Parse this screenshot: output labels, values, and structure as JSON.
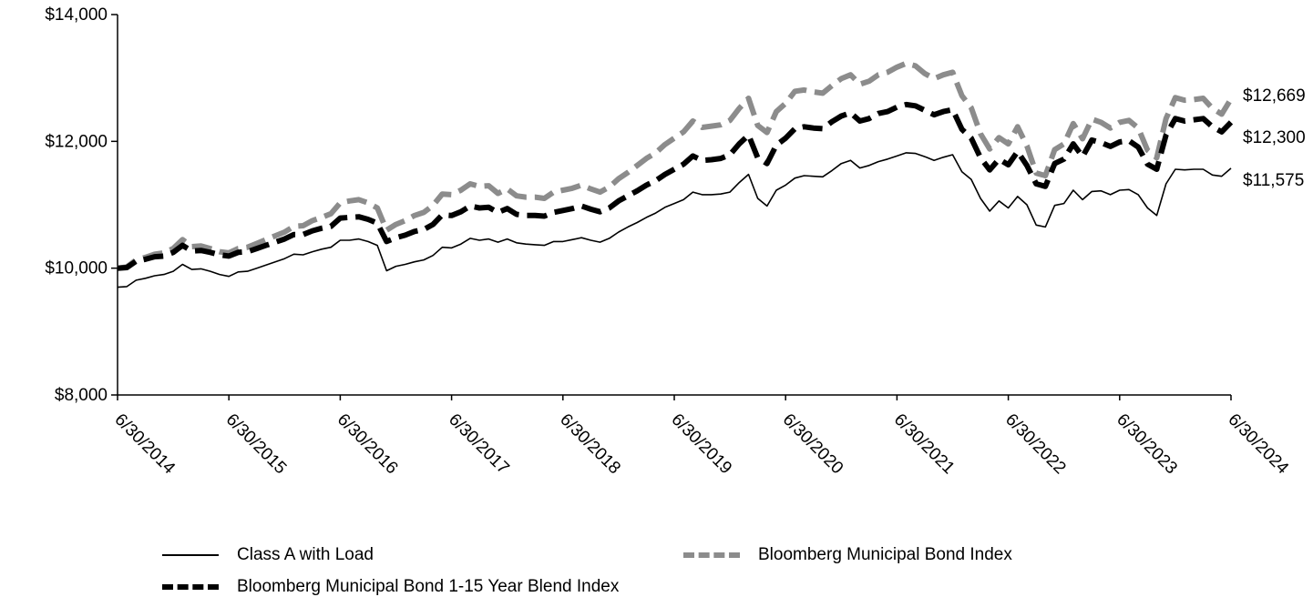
{
  "chart_data": {
    "type": "line",
    "title": "",
    "xlabel": "",
    "ylabel": "",
    "ylim": [
      8000,
      14000
    ],
    "yticks": [
      "$8,000",
      "$10,000",
      "$12,000",
      "$14,000"
    ],
    "ytick_values": [
      8000,
      10000,
      12000,
      14000
    ],
    "xticks": [
      "6/30/2014",
      "6/30/2015",
      "6/30/2016",
      "6/30/2017",
      "6/30/2018",
      "6/30/2019",
      "6/30/2020",
      "6/30/2021",
      "6/30/2022",
      "6/30/2023",
      "6/30/2024"
    ],
    "xlim": [
      0,
      120
    ],
    "grid": false,
    "legend_position": "bottom",
    "series": [
      {
        "name": "Class A with Load",
        "color": "#000000",
        "style": "solid-thin",
        "end_label": "$11,575",
        "x": [
          0,
          1,
          2,
          3,
          4,
          5,
          6,
          7,
          8,
          9,
          10,
          11,
          12,
          13,
          14,
          15,
          16,
          17,
          18,
          19,
          20,
          21,
          22,
          23,
          24,
          25,
          26,
          27,
          28,
          29,
          30,
          31,
          32,
          33,
          34,
          35,
          36,
          37,
          38,
          39,
          40,
          41,
          42,
          43,
          44,
          45,
          46,
          47,
          48,
          49,
          50,
          51,
          52,
          53,
          54,
          55,
          56,
          57,
          58,
          59,
          60,
          61,
          62,
          63,
          64,
          65,
          66,
          67,
          68,
          69,
          70,
          71,
          72,
          73,
          74,
          75,
          76,
          77,
          78,
          79,
          80,
          81,
          82,
          83,
          84,
          85,
          86,
          87,
          88,
          89,
          90,
          91,
          92,
          93,
          94,
          95,
          96,
          97,
          98,
          99,
          100,
          101,
          102,
          103,
          104,
          105,
          106,
          107,
          108,
          109,
          110,
          111,
          112,
          113,
          114,
          115,
          116,
          117,
          118,
          119,
          120
        ],
        "values": [
          9700,
          9710,
          9810,
          9840,
          9880,
          9900,
          9950,
          10060,
          9980,
          9990,
          9950,
          9900,
          9870,
          9940,
          9950,
          10000,
          10050,
          10100,
          10150,
          10220,
          10210,
          10260,
          10300,
          10330,
          10440,
          10440,
          10460,
          10420,
          10360,
          9960,
          10030,
          10060,
          10100,
          10130,
          10200,
          10330,
          10320,
          10380,
          10470,
          10440,
          10460,
          10410,
          10460,
          10400,
          10380,
          10370,
          10360,
          10420,
          10420,
          10450,
          10480,
          10440,
          10410,
          10470,
          10570,
          10650,
          10720,
          10800,
          10870,
          10960,
          11020,
          11080,
          11200,
          11160,
          11160,
          11170,
          11200,
          11350,
          11480,
          11100,
          10980,
          11230,
          11310,
          11420,
          11460,
          11450,
          11440,
          11540,
          11650,
          11700,
          11580,
          11620,
          11680,
          11720,
          11770,
          11820,
          11810,
          11760,
          11700,
          11750,
          11790,
          11520,
          11400,
          11100,
          10900,
          11060,
          10950,
          11130,
          11000,
          10680,
          10650,
          10990,
          11020,
          11230,
          11080,
          11210,
          11220,
          11160,
          11230,
          11240,
          11160,
          10950,
          10830,
          11330,
          11560,
          11550,
          11560,
          11560,
          11470,
          11450,
          11575
        ]
      },
      {
        "name": "Bloomberg Municipal Bond 1-15 Year Blend Index",
        "color": "#000000",
        "style": "dashed-thick",
        "end_label": "$12,300",
        "x": [
          0,
          1,
          2,
          3,
          4,
          5,
          6,
          7,
          8,
          9,
          10,
          11,
          12,
          13,
          14,
          15,
          16,
          17,
          18,
          19,
          20,
          21,
          22,
          23,
          24,
          25,
          26,
          27,
          28,
          29,
          30,
          31,
          32,
          33,
          34,
          35,
          36,
          37,
          38,
          39,
          40,
          41,
          42,
          43,
          44,
          45,
          46,
          47,
          48,
          49,
          50,
          51,
          52,
          53,
          54,
          55,
          56,
          57,
          58,
          59,
          60,
          61,
          62,
          63,
          64,
          65,
          66,
          67,
          68,
          69,
          70,
          71,
          72,
          73,
          74,
          75,
          76,
          77,
          78,
          79,
          80,
          81,
          82,
          83,
          84,
          85,
          86,
          87,
          88,
          89,
          90,
          91,
          92,
          93,
          94,
          95,
          96,
          97,
          98,
          99,
          100,
          101,
          102,
          103,
          104,
          105,
          106,
          107,
          108,
          109,
          110,
          111,
          112,
          113,
          114,
          115,
          116,
          117,
          118,
          119,
          120
        ],
        "values": [
          10000,
          10010,
          10110,
          10140,
          10180,
          10190,
          10250,
          10360,
          10270,
          10280,
          10250,
          10210,
          10190,
          10250,
          10260,
          10310,
          10360,
          10410,
          10460,
          10530,
          10530,
          10590,
          10630,
          10660,
          10790,
          10800,
          10810,
          10770,
          10710,
          10420,
          10480,
          10520,
          10580,
          10610,
          10690,
          10840,
          10830,
          10890,
          10980,
          10950,
          10960,
          10880,
          10940,
          10850,
          10830,
          10830,
          10820,
          10880,
          10910,
          10940,
          10980,
          10930,
          10890,
          10950,
          11060,
          11140,
          11220,
          11310,
          11380,
          11480,
          11560,
          11640,
          11770,
          11700,
          11710,
          11730,
          11790,
          11960,
          12100,
          11740,
          11650,
          11940,
          12050,
          12200,
          12230,
          12210,
          12200,
          12310,
          12400,
          12450,
          12320,
          12360,
          12440,
          12470,
          12540,
          12580,
          12560,
          12490,
          12420,
          12470,
          12500,
          12190,
          12050,
          11740,
          11550,
          11720,
          11630,
          11840,
          11620,
          11330,
          11290,
          11650,
          11720,
          11960,
          11760,
          12020,
          11980,
          11920,
          11990,
          12010,
          11910,
          11640,
          11560,
          12100,
          12360,
          12320,
          12340,
          12360,
          12230,
          12150,
          12300
        ]
      },
      {
        "name": "Bloomberg Municipal Bond Index",
        "color": "#8c8c8c",
        "style": "dashed-thick",
        "end_label": "$12,669",
        "x": [
          0,
          1,
          2,
          3,
          4,
          5,
          6,
          7,
          8,
          9,
          10,
          11,
          12,
          13,
          14,
          15,
          16,
          17,
          18,
          19,
          20,
          21,
          22,
          23,
          24,
          25,
          26,
          27,
          28,
          29,
          30,
          31,
          32,
          33,
          34,
          35,
          36,
          37,
          38,
          39,
          40,
          41,
          42,
          43,
          44,
          45,
          46,
          47,
          48,
          49,
          50,
          51,
          52,
          53,
          54,
          55,
          56,
          57,
          58,
          59,
          60,
          61,
          62,
          63,
          64,
          65,
          66,
          67,
          68,
          69,
          70,
          71,
          72,
          73,
          74,
          75,
          76,
          77,
          78,
          79,
          80,
          81,
          82,
          83,
          84,
          85,
          86,
          87,
          88,
          89,
          90,
          91,
          92,
          93,
          94,
          95,
          96,
          97,
          98,
          99,
          100,
          101,
          102,
          103,
          104,
          105,
          106,
          107,
          108,
          109,
          110,
          111,
          112,
          113,
          114,
          115,
          116,
          117,
          118,
          119,
          120
        ],
        "values": [
          10000,
          10020,
          10130,
          10170,
          10220,
          10240,
          10310,
          10450,
          10340,
          10350,
          10310,
          10260,
          10240,
          10310,
          10330,
          10390,
          10450,
          10510,
          10570,
          10660,
          10670,
          10750,
          10800,
          10860,
          11030,
          11060,
          11080,
          11030,
          10950,
          10600,
          10690,
          10750,
          10830,
          10880,
          10990,
          11170,
          11160,
          11230,
          11330,
          11290,
          11300,
          11180,
          11250,
          11140,
          11120,
          11120,
          11100,
          11200,
          11230,
          11260,
          11310,
          11250,
          11200,
          11280,
          11410,
          11510,
          11620,
          11730,
          11820,
          11950,
          12050,
          12150,
          12320,
          12220,
          12240,
          12260,
          12330,
          12520,
          12680,
          12250,
          12140,
          12470,
          12600,
          12790,
          12810,
          12780,
          12760,
          12880,
          12990,
          13050,
          12900,
          12950,
          13050,
          13090,
          13170,
          13230,
          13190,
          13070,
          12990,
          13050,
          13090,
          12720,
          12530,
          12120,
          11880,
          12060,
          11960,
          12230,
          11930,
          11500,
          11460,
          11870,
          11960,
          12280,
          12040,
          12350,
          12300,
          12210,
          12300,
          12330,
          12210,
          11860,
          11740,
          12360,
          12690,
          12650,
          12660,
          12680,
          12520,
          12430,
          12669
        ]
      }
    ]
  }
}
